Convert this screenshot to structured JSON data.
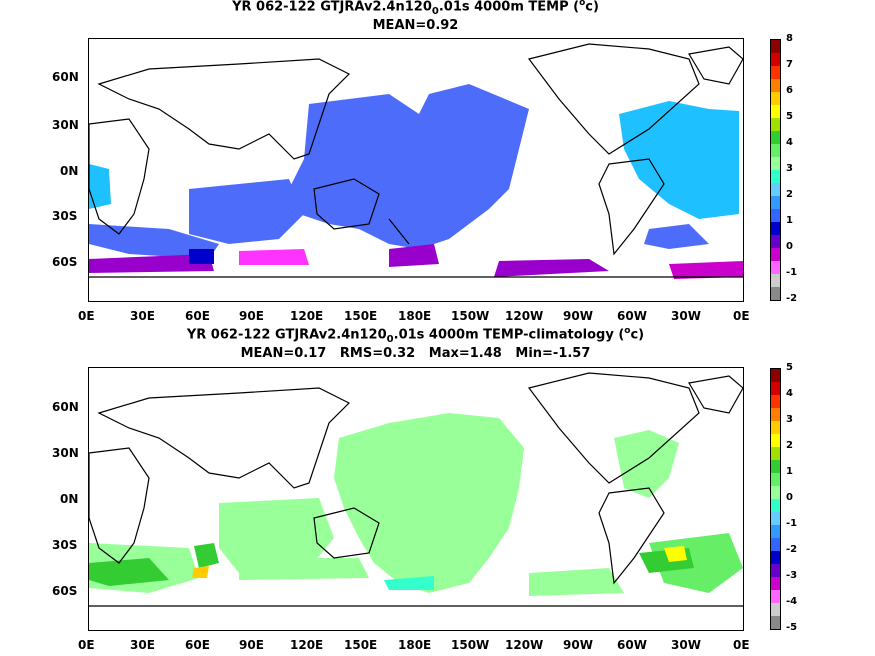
{
  "panels": [
    {
      "title_pre": "YR 062-122 GTJRAv2.4n120",
      "title_sub": "0",
      "title_post": ".01s 4000m TEMP (",
      "title_sup": "o",
      "title_end": "c)",
      "stats": "MEAN=0.92",
      "colorbar_labels": [
        "8",
        "7",
        "6",
        "5",
        "4",
        "3",
        "2",
        "1",
        "0",
        "-1",
        "-2"
      ]
    },
    {
      "title_pre": "YR 062-122 GTJRAv2.4n120",
      "title_sub": "0",
      "title_post": ".01s 4000m TEMP-climatology (",
      "title_sup": "o",
      "title_end": "c)",
      "stats": "MEAN=0.17   RMS=0.32   Max=1.48   Min=-1.57",
      "colorbar_labels": [
        "5",
        "4",
        "3",
        "2",
        "1",
        "0",
        "-1",
        "-2",
        "-3",
        "-4",
        "-5"
      ]
    }
  ],
  "lat_labels": [
    "60N",
    "30N",
    "0N",
    "30S",
    "60S"
  ],
  "lon_labels": [
    "0E",
    "30E",
    "60E",
    "90E",
    "120E",
    "150E",
    "180E",
    "150W",
    "120W",
    "90W",
    "60W",
    "30W",
    "0E"
  ],
  "colorbar_colors": [
    "#8b0000",
    "#d40000",
    "#ff3300",
    "#ff7f00",
    "#ffcc00",
    "#ffff00",
    "#a0e000",
    "#33cc33",
    "#66ee66",
    "#99ff99",
    "#33ffcc",
    "#66ccff",
    "#3399ff",
    "#3366ff",
    "#0000cc",
    "#6600cc",
    "#cc00cc",
    "#ff66ff",
    "#cccccc",
    "#888888"
  ]
}
